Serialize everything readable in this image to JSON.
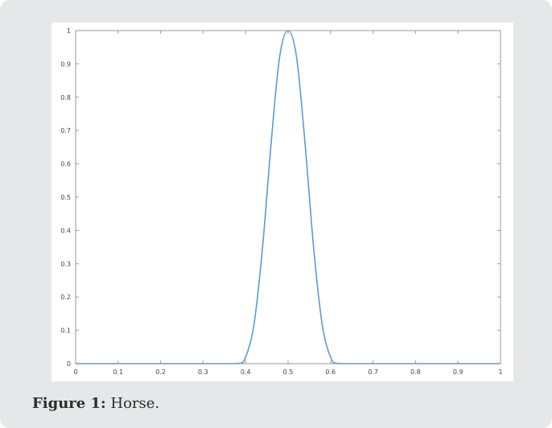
{
  "caption": {
    "label": "Figure 1:",
    "text": "Horse."
  },
  "chart_data": {
    "type": "line",
    "title": "",
    "xlabel": "",
    "ylabel": "",
    "xlim": [
      0,
      1
    ],
    "ylim": [
      0,
      1
    ],
    "x_ticks": [
      0,
      0.1,
      0.2,
      0.3,
      0.4,
      0.5,
      0.6,
      0.7,
      0.8,
      0.9,
      1
    ],
    "x_tick_labels": [
      "0",
      "0.1",
      "0.2",
      "0.3",
      "0.4",
      "0.5",
      "0.6",
      "0.7",
      "0.8",
      "0.9",
      "1"
    ],
    "y_ticks": [
      0,
      0.1,
      0.2,
      0.3,
      0.4,
      0.5,
      0.6,
      0.7,
      0.8,
      0.9,
      1
    ],
    "y_tick_labels": [
      "0",
      "0.1",
      "0.2",
      "0.3",
      "0.4",
      "0.5",
      "0.6",
      "0.7",
      "0.8",
      "0.9",
      "1"
    ],
    "grid": false,
    "series": [
      {
        "color": "#5b9bd5",
        "x": [
          0,
          0.1,
          0.2,
          0.3,
          0.38,
          0.4,
          0.42,
          0.44,
          0.46,
          0.48,
          0.5,
          0.52,
          0.54,
          0.56,
          0.58,
          0.6,
          0.62,
          0.7,
          0.8,
          0.9,
          1
        ],
        "y": [
          0,
          0,
          0,
          0,
          0,
          0.02,
          0.12,
          0.35,
          0.66,
          0.92,
          1,
          0.92,
          0.66,
          0.35,
          0.12,
          0.02,
          0,
          0,
          0,
          0,
          0
        ]
      }
    ]
  }
}
